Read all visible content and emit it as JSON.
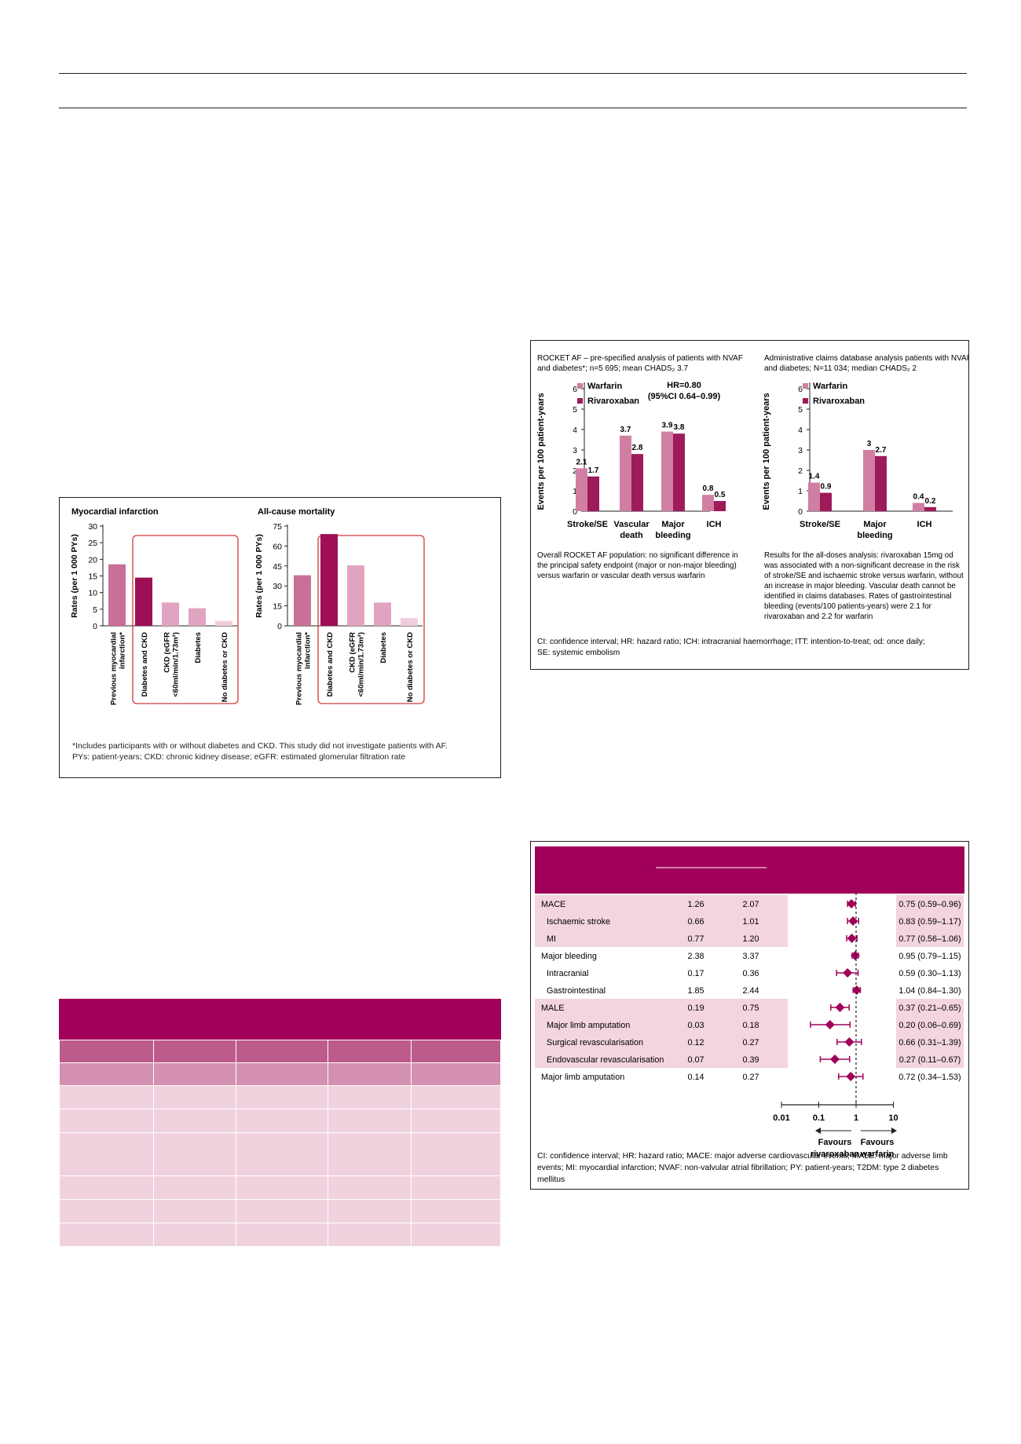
{
  "colors": {
    "brand": "#a0005a",
    "warfarin": "#d07fa3",
    "rivaroxaban": "#9e1b5a",
    "band": "#f3d4e1",
    "header_dark": "#a0005a",
    "header_mid": "#bd5b8a",
    "header_light": "#d490b0",
    "row": "#f0d2df"
  },
  "fig_left": {
    "chart_data": [
      {
        "type": "bar",
        "title": "Myocardial infarction",
        "ylabel": "Rates (per 1 000 PYs)",
        "ylim": [
          0,
          30
        ],
        "yticks": [
          "0",
          "5",
          "10",
          "15",
          "20",
          "25",
          "30"
        ],
        "categories": [
          "Previous myocardial infarction*",
          "Diabetes and CKD",
          "CKD (eGFR <60ml/min/1.73m²)",
          "Diabetes",
          "No diabetes or CKD"
        ],
        "values": [
          18.5,
          14.5,
          7,
          5.3,
          1.5
        ],
        "colors": [
          "#c96f98",
          "#9e0f55",
          "#e0a4c0",
          "#e0a4c0",
          "#f0cddd"
        ],
        "highlight_box": "Diabetes and CKD to Diabetes"
      },
      {
        "type": "bar",
        "title": "All-cause mortality",
        "ylabel": "Rates (per 1 000 PYs)",
        "ylim": [
          0,
          75
        ],
        "yticks": [
          "0",
          "15",
          "30",
          "45",
          "60",
          "75"
        ],
        "categories": [
          "Previous myocardial infarction*",
          "Diabetes and CKD",
          "CKD (eGFR <60ml/min/1.73m²)",
          "Diabetes",
          "No diabetes or CKD"
        ],
        "values": [
          38,
          69,
          45.5,
          17.5,
          5.8
        ],
        "colors": [
          "#c96f98",
          "#9e0f55",
          "#e0a4c0",
          "#e0a4c0",
          "#f0cddd"
        ],
        "highlight_box": "Diabetes and CKD to Diabetes"
      }
    ],
    "xlabels": [
      [
        "Previous myocardial",
        "infarction*"
      ],
      [
        "Diabetes and CKD"
      ],
      [
        "CKD (eGFR",
        "<60ml/min/1.73m²)"
      ],
      [
        "Diabetes"
      ],
      [
        "No diabetes or CKD"
      ]
    ],
    "footnote1": "*Includes participants with or without diabetes and CKD. This study did not investigate patients with AF.",
    "footnote2": "PYs: patient-years; CKD: chronic kidney disease; eGFR: estimated glomerular filtration rate"
  },
  "fig_rocket": {
    "chart_data": [
      {
        "type": "bar",
        "title": "ROCKET AF – pre-specified analysis of patients with NVAF and diabetes*; n=5 695; mean CHADS₂ 3.7",
        "ylabel": "Events per 100 patient-years",
        "ylim": [
          0,
          6
        ],
        "yticks": [
          "0",
          "1",
          "2",
          "3",
          "4",
          "5",
          "6"
        ],
        "categories": [
          "Stroke/SE",
          "Vascular death",
          "Major bleeding",
          "ICH"
        ],
        "series": [
          {
            "name": "Warfarin",
            "values": [
              2.1,
              3.7,
              3.9,
              0.8
            ]
          },
          {
            "name": "Rivaroxaban",
            "values": [
              1.7,
              2.8,
              3.8,
              0.5
            ]
          }
        ],
        "annotation": "HR=0.80 (95%CI 0.64–0.99)"
      },
      {
        "type": "bar",
        "title": "Administrative claims database analysis patients with NVAF and diabetes; N=11 034; median CHADS₂ 2",
        "ylabel": "Events per 100 patient-years",
        "ylim": [
          0,
          6
        ],
        "yticks": [
          "0",
          "1",
          "2",
          "3",
          "4",
          "5",
          "6"
        ],
        "categories": [
          "Stroke/SE",
          "Major bleeding",
          "ICH"
        ],
        "series": [
          {
            "name": "Warfarin",
            "values": [
              1.4,
              3.0,
              0.4
            ]
          },
          {
            "name": "Rivaroxaban",
            "values": [
              0.9,
              2.7,
              0.2
            ]
          }
        ]
      }
    ],
    "left_title": [
      "ROCKET AF – pre-specified analysis of patients with NVAF",
      "and diabetes*; n=5 695; mean CHADS₂ 3.7"
    ],
    "right_title": [
      "Administrative claims database analysis patients with NVAF",
      "and diabetes; N=11 034; median CHADS₂ 2"
    ],
    "xlabels_left": [
      [
        "Stroke/SE"
      ],
      [
        "Vascular",
        "death"
      ],
      [
        "Major",
        "bleeding"
      ],
      [
        "ICH"
      ]
    ],
    "xlabels_right": [
      [
        "Stroke/SE"
      ],
      [
        "Major",
        "bleeding"
      ],
      [
        "ICH"
      ]
    ],
    "hr_line1": "HR=0.80",
    "hr_line2": "(95%CI 0.64–0.99)",
    "left_note": [
      "Overall ROCKET AF population: no significant difference in",
      "the principal safety endpoint (major or non-major bleeding)",
      "versus warfarin or vascular death versus warfarin"
    ],
    "right_note": [
      "Results for the all-doses analysis: rivaroxaban 15mg od",
      "was associated with a non-significant decrease in the risk",
      "of stroke/SE and ischaemic stroke versus warfarin, without",
      "an increase in major bleeding. Vascular death cannot be",
      "identified in claims databases. Rates of gastrointestinal",
      "bleeding (events/100 patients-years) were 2.1 for",
      "rivaroxaban and 2.2 for warfarin"
    ],
    "footnote": [
      "CI: confidence interval; HR: hazard ratio; ICH: intracranial haemorrhage; ITT: intention-to-treat; od: once daily;",
      "SE: systemic embolism"
    ]
  },
  "fig_forest": {
    "chart_data": {
      "type": "forest",
      "xscale": "log",
      "xlim": [
        0.01,
        10
      ],
      "xticks": [
        "0.01",
        "0.1",
        "1",
        "10"
      ],
      "rows": [
        {
          "label": "MACE",
          "riva": "1.26",
          "warf": "2.07",
          "hr": 0.75,
          "lo": 0.59,
          "hi": 0.96,
          "ci": "0.75 (0.59–0.96)",
          "indent": false,
          "band": true
        },
        {
          "label": "Ischaemic stroke",
          "riva": "0.66",
          "warf": "1.01",
          "hr": 0.83,
          "lo": 0.59,
          "hi": 1.17,
          "ci": "0.83 (0.59–1.17)",
          "indent": true,
          "band": true
        },
        {
          "label": "MI",
          "riva": "0.77",
          "warf": "1.20",
          "hr": 0.77,
          "lo": 0.56,
          "hi": 1.06,
          "ci": "0.77 (0.56–1.06)",
          "indent": true,
          "band": true
        },
        {
          "label": "Major bleeding",
          "riva": "2.38",
          "warf": "3.37",
          "hr": 0.95,
          "lo": 0.79,
          "hi": 1.15,
          "ci": "0.95 (0.79–1.15)",
          "indent": false,
          "band": false
        },
        {
          "label": "Intracranial",
          "riva": "0.17",
          "warf": "0.36",
          "hr": 0.59,
          "lo": 0.3,
          "hi": 1.13,
          "ci": "0.59 (0.30–1.13)",
          "indent": true,
          "band": false
        },
        {
          "label": "Gastrointestinal",
          "riva": "1.85",
          "warf": "2.44",
          "hr": 1.04,
          "lo": 0.84,
          "hi": 1.3,
          "ci": "1.04 (0.84–1.30)",
          "indent": true,
          "band": false
        },
        {
          "label": "MALE",
          "riva": "0.19",
          "warf": "0.75",
          "hr": 0.37,
          "lo": 0.21,
          "hi": 0.65,
          "ci": "0.37 (0.21–0.65)",
          "indent": false,
          "band": true
        },
        {
          "label": "Major limb amputation",
          "riva": "0.03",
          "warf": "0.18",
          "hr": 0.2,
          "lo": 0.06,
          "hi": 0.69,
          "ci": "0.20 (0.06–0.69)",
          "indent": true,
          "band": true
        },
        {
          "label": "Surgical revascularisation",
          "riva": "0.12",
          "warf": "0.27",
          "hr": 0.66,
          "lo": 0.31,
          "hi": 1.39,
          "ci": "0.66 (0.31–1.39)",
          "indent": true,
          "band": true
        },
        {
          "label": "Endovascular revascularisation",
          "riva": "0.07",
          "warf": "0.39",
          "hr": 0.27,
          "lo": 0.11,
          "hi": 0.67,
          "ci": "0.27 (0.11–0.67)",
          "indent": true,
          "band": true
        },
        {
          "label": "Major limb amputation",
          "riva": "0.14",
          "warf": "0.27",
          "hr": 0.72,
          "lo": 0.34,
          "hi": 1.53,
          "ci": "0.72 (0.34–1.53)",
          "indent": false,
          "band": false
        }
      ]
    },
    "favours_left": [
      "Favours",
      "rivaroxaban"
    ],
    "favours_right": [
      "Favours",
      "warfarin"
    ],
    "footnote": [
      "CI: confidence interval; HR: hazard ratio; MACE: major adverse cardiovascular events; MALE: major adverse limb",
      "events; MI: myocardial infarction; NVAF: non-valvular atrial fibrillation; PY: patient-years; T2DM: type 2 diabetes",
      "mellitus"
    ]
  },
  "table1": {
    "column_count": 5,
    "rows": [
      {
        "style": "header_mid",
        "cells": [
          "",
          "",
          "",
          "",
          ""
        ]
      },
      {
        "style": "header_light",
        "cells": [
          "",
          "",
          "",
          "",
          ""
        ]
      },
      {
        "style": "row",
        "cells": [
          "",
          "",
          "",
          "",
          ""
        ]
      },
      {
        "style": "row",
        "cells": [
          "",
          "",
          "",
          "",
          ""
        ]
      },
      {
        "style": "row_tall",
        "cells": [
          "",
          "",
          "",
          "",
          ""
        ]
      },
      {
        "style": "row",
        "cells": [
          "",
          "",
          "",
          "",
          ""
        ]
      },
      {
        "style": "row",
        "cells": [
          "",
          "",
          "",
          "",
          ""
        ]
      },
      {
        "style": "row",
        "cells": [
          "",
          "",
          "",
          "",
          ""
        ]
      }
    ]
  }
}
